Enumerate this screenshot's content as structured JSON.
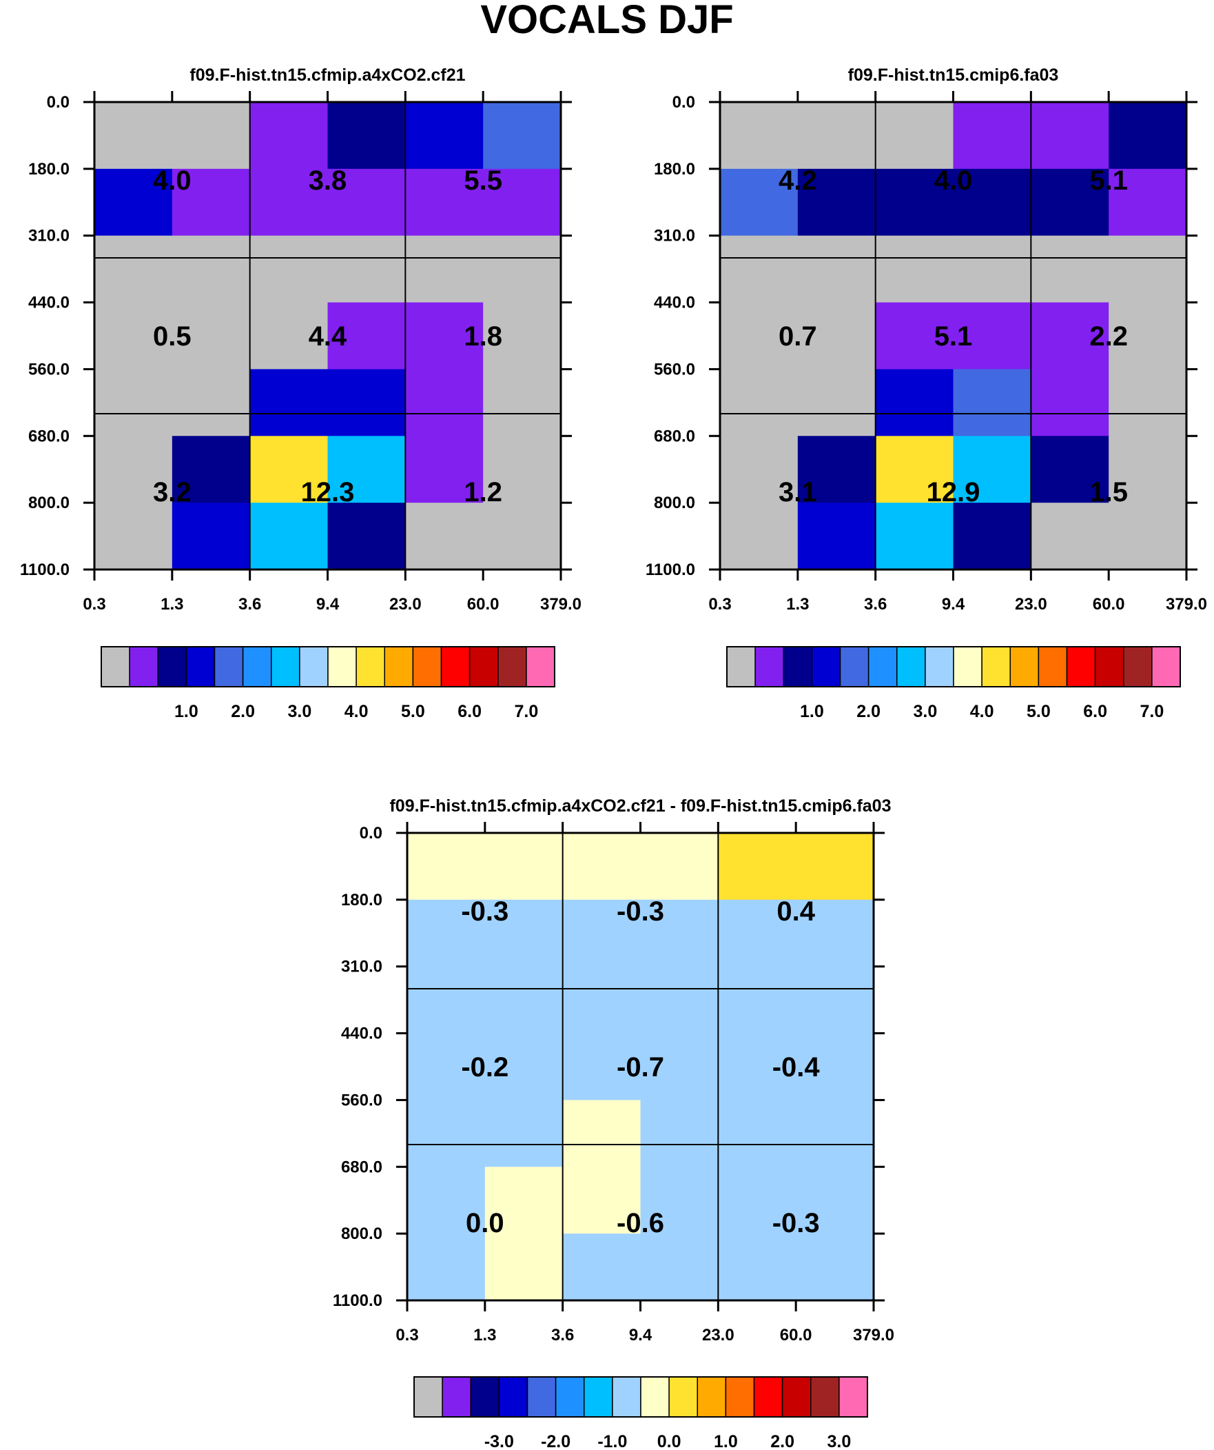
{
  "title": "VOCALS DJF",
  "palette": {
    "missing": "#c0c0c0",
    "violet": "#8220f0",
    "navy": "#00008c",
    "blue": "#0000d2",
    "royal": "#4169e1",
    "dodger": "#1e90ff",
    "sky": "#00bfff",
    "pale_blue": "#a0d2ff",
    "cream": "#ffffc8",
    "yellow": "#ffe130",
    "amber": "#ffaa00",
    "orange": "#ff6e00",
    "red": "#ff0000",
    "crimson": "#c80000",
    "brown": "#a02323",
    "pink": "#ff69b4"
  },
  "chart_data": [
    {
      "type": "heatmap",
      "title": "f09.F-hist.tn15.cfmip.a4xCO2.cf21",
      "x_tick_labels": [
        "0.3",
        "1.3",
        "3.6",
        "9.4",
        "23.0",
        "60.0",
        "379.0"
      ],
      "y_tick_labels": [
        "0.0",
        "180.0",
        "310.0",
        "440.0",
        "560.0",
        "680.0",
        "800.0",
        "1100.0"
      ],
      "cell_colors": [
        [
          "missing",
          "missing",
          "violet",
          "navy",
          "blue",
          "royal"
        ],
        [
          "blue",
          "violet",
          "violet",
          "violet",
          "violet",
          "violet"
        ],
        [
          "missing",
          "missing",
          "missing",
          "missing",
          "missing",
          "missing"
        ],
        [
          "missing",
          "missing",
          "missing",
          "violet",
          "violet",
          "missing"
        ],
        [
          "missing",
          "missing",
          "blue",
          "blue",
          "violet",
          "missing"
        ],
        [
          "missing",
          "navy",
          "yellow",
          "sky",
          "violet",
          "missing"
        ],
        [
          "missing",
          "blue",
          "sky",
          "navy",
          "missing",
          "missing"
        ]
      ],
      "box_values": [
        [
          "4.0",
          "3.8",
          "5.5"
        ],
        [
          "0.5",
          "4.4",
          "1.8"
        ],
        [
          "3.2",
          "12.3",
          "1.2"
        ]
      ],
      "colorbar": {
        "colors": [
          "missing",
          "violet",
          "navy",
          "blue",
          "royal",
          "dodger",
          "sky",
          "pale_blue",
          "cream",
          "yellow",
          "amber",
          "orange",
          "red",
          "crimson",
          "brown",
          "pink"
        ],
        "labels": [
          "1.0",
          "2.0",
          "3.0",
          "4.0",
          "5.0",
          "6.0",
          "7.0"
        ]
      }
    },
    {
      "type": "heatmap",
      "title": "f09.F-hist.tn15.cmip6.fa03",
      "x_tick_labels": [
        "0.3",
        "1.3",
        "3.6",
        "9.4",
        "23.0",
        "60.0",
        "379.0"
      ],
      "y_tick_labels": [
        "0.0",
        "180.0",
        "310.0",
        "440.0",
        "560.0",
        "680.0",
        "800.0",
        "1100.0"
      ],
      "cell_colors": [
        [
          "missing",
          "missing",
          "missing",
          "violet",
          "violet",
          "navy"
        ],
        [
          "royal",
          "navy",
          "navy",
          "navy",
          "navy",
          "violet"
        ],
        [
          "missing",
          "missing",
          "missing",
          "missing",
          "missing",
          "missing"
        ],
        [
          "missing",
          "missing",
          "violet",
          "violet",
          "violet",
          "missing"
        ],
        [
          "missing",
          "missing",
          "blue",
          "royal",
          "violet",
          "missing"
        ],
        [
          "missing",
          "navy",
          "yellow",
          "sky",
          "navy",
          "missing"
        ],
        [
          "missing",
          "blue",
          "sky",
          "navy",
          "missing",
          "missing"
        ]
      ],
      "box_values": [
        [
          "4.2",
          "4.0",
          "5.1"
        ],
        [
          "0.7",
          "5.1",
          "2.2"
        ],
        [
          "3.1",
          "12.9",
          "1.5"
        ]
      ],
      "colorbar": {
        "colors": [
          "missing",
          "violet",
          "navy",
          "blue",
          "royal",
          "dodger",
          "sky",
          "pale_blue",
          "cream",
          "yellow",
          "amber",
          "orange",
          "red",
          "crimson",
          "brown",
          "pink"
        ],
        "labels": [
          "1.0",
          "2.0",
          "3.0",
          "4.0",
          "5.0",
          "6.0",
          "7.0"
        ]
      }
    },
    {
      "type": "heatmap",
      "title": "f09.F-hist.tn15.cfmip.a4xCO2.cf21 - f09.F-hist.tn15.cmip6.fa03",
      "x_tick_labels": [
        "0.3",
        "1.3",
        "3.6",
        "9.4",
        "23.0",
        "60.0",
        "379.0"
      ],
      "y_tick_labels": [
        "0.0",
        "180.0",
        "310.0",
        "440.0",
        "560.0",
        "680.0",
        "800.0",
        "1100.0"
      ],
      "cell_colors": [
        [
          "cream",
          "cream",
          "cream",
          "cream",
          "yellow",
          "yellow"
        ],
        [
          "pale_blue",
          "pale_blue",
          "pale_blue",
          "pale_blue",
          "pale_blue",
          "pale_blue"
        ],
        [
          "pale_blue",
          "pale_blue",
          "pale_blue",
          "pale_blue",
          "pale_blue",
          "pale_blue"
        ],
        [
          "pale_blue",
          "pale_blue",
          "pale_blue",
          "pale_blue",
          "pale_blue",
          "pale_blue"
        ],
        [
          "pale_blue",
          "pale_blue",
          "cream",
          "pale_blue",
          "pale_blue",
          "pale_blue"
        ],
        [
          "pale_blue",
          "cream",
          "cream",
          "pale_blue",
          "pale_blue",
          "pale_blue"
        ],
        [
          "pale_blue",
          "cream",
          "pale_blue",
          "pale_blue",
          "pale_blue",
          "pale_blue"
        ]
      ],
      "box_values": [
        [
          "-0.3",
          "-0.3",
          "0.4"
        ],
        [
          "-0.2",
          "-0.7",
          "-0.4"
        ],
        [
          "0.0",
          "-0.6",
          "-0.3"
        ]
      ],
      "colorbar": {
        "colors": [
          "missing",
          "violet",
          "navy",
          "blue",
          "royal",
          "dodger",
          "sky",
          "pale_blue",
          "cream",
          "yellow",
          "amber",
          "orange",
          "red",
          "crimson",
          "brown",
          "pink"
        ],
        "labels": [
          "-3.0",
          "-2.0",
          "-1.0",
          "0.0",
          "1.0",
          "2.0",
          "3.0"
        ]
      }
    }
  ]
}
